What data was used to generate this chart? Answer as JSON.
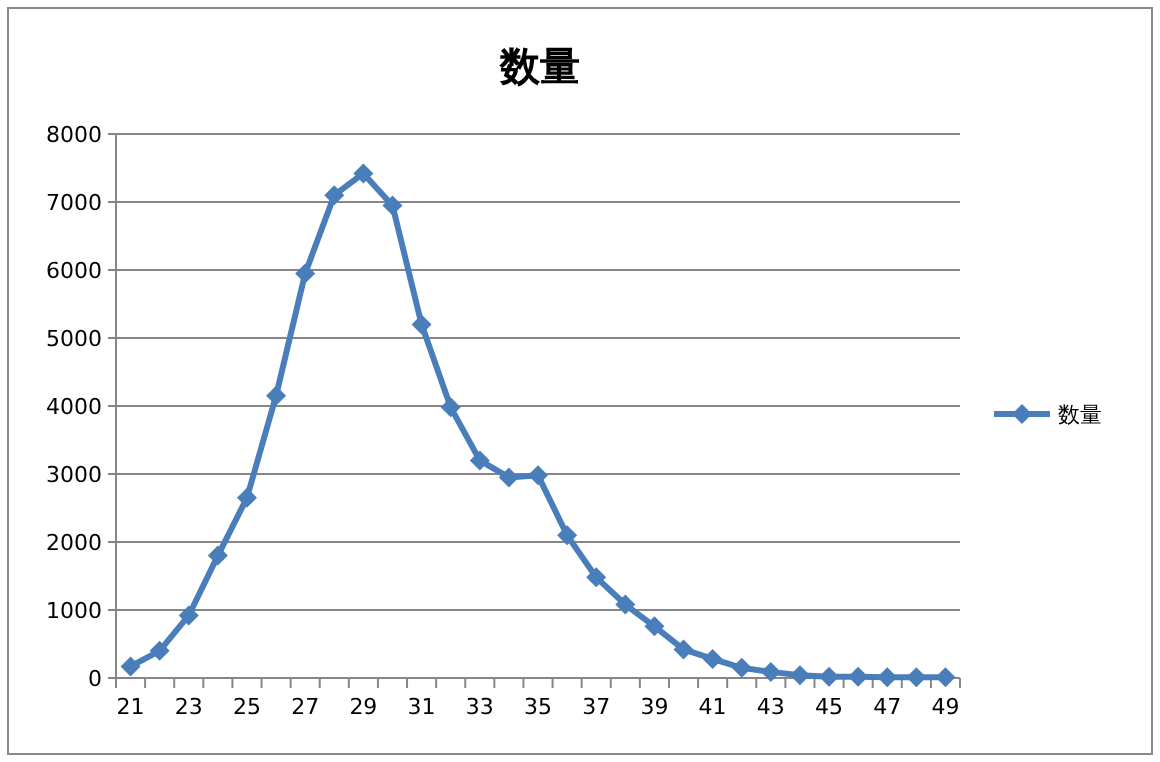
{
  "chart_data": {
    "type": "line",
    "title": "数量",
    "categories": [
      "21",
      null,
      "23",
      null,
      "25",
      null,
      "27",
      null,
      "29",
      null,
      "31",
      null,
      "33",
      null,
      "35",
      null,
      "37",
      null,
      "39",
      null,
      "41",
      null,
      "43",
      null,
      "45",
      null,
      "47",
      null,
      "49"
    ],
    "series": [
      {
        "name": "数量",
        "color": "#4a7ebb",
        "values": [
          170,
          400,
          920,
          1800,
          2650,
          4150,
          5950,
          7100,
          7420,
          6950,
          5200,
          3980,
          3200,
          2950,
          2980,
          2100,
          1480,
          1080,
          760,
          420,
          280,
          150,
          90,
          40,
          20,
          20,
          10,
          10,
          10
        ]
      }
    ],
    "ylim": [
      0,
      8000
    ],
    "yticks": [
      0,
      1000,
      2000,
      3000,
      4000,
      5000,
      6000,
      7000,
      8000
    ],
    "grid": "y",
    "legend": "right",
    "marker": "diamond",
    "line_style": "solid"
  }
}
